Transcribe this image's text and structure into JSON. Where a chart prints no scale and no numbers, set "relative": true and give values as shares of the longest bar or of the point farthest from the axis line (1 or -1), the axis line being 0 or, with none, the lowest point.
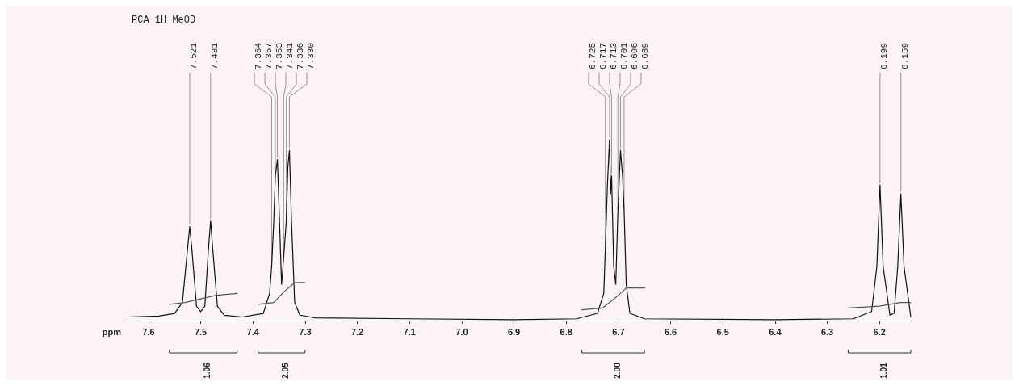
{
  "chart_data": {
    "type": "line",
    "title": "PCA 1H MeOD",
    "xlabel": "ppm",
    "relative": true,
    "marker": "none",
    "line_style": "solid",
    "grid": false,
    "xlim": [
      7.64,
      6.14
    ],
    "xticks": [
      7.6,
      7.5,
      7.4,
      7.3,
      7.2,
      7.1,
      {
        "value": 7,
        "label": "7.0"
      },
      6.9,
      6.8,
      6.7,
      6.6,
      6.5,
      6.4,
      6.3,
      6.2
    ],
    "series": [
      {
        "color": "#111111",
        "x": [
          7.64,
          7.58,
          7.55,
          7.535,
          7.525,
          7.521,
          7.517,
          7.508,
          7.5,
          7.492,
          7.485,
          7.481,
          7.477,
          7.468,
          7.455,
          7.42,
          7.38,
          7.368,
          7.364,
          7.36,
          7.357,
          7.353,
          7.349,
          7.345,
          7.341,
          7.336,
          7.333,
          7.33,
          7.326,
          7.32,
          7.31,
          7.28,
          7.1,
          6.9,
          6.78,
          6.74,
          6.728,
          6.725,
          6.721,
          6.717,
          6.715,
          6.713,
          6.709,
          6.705,
          6.701,
          6.696,
          6.692,
          6.689,
          6.685,
          6.678,
          6.65,
          6.4,
          6.25,
          6.215,
          6.205,
          6.199,
          6.193,
          6.18,
          6.172,
          6.165,
          6.159,
          6.153,
          6.14
        ],
        "values": [
          0.02,
          0.025,
          0.04,
          0.1,
          0.4,
          0.52,
          0.4,
          0.08,
          0.05,
          0.08,
          0.4,
          0.55,
          0.4,
          0.08,
          0.03,
          0.02,
          0.04,
          0.15,
          0.3,
          0.55,
          0.8,
          0.89,
          0.55,
          0.2,
          0.35,
          0.55,
          0.85,
          0.94,
          0.55,
          0.1,
          0.03,
          0.015,
          0.01,
          0.005,
          0.01,
          0.04,
          0.15,
          0.4,
          0.75,
          1.0,
          0.7,
          0.8,
          0.3,
          0.2,
          0.6,
          0.94,
          0.8,
          0.6,
          0.2,
          0.04,
          0.01,
          0.005,
          0.01,
          0.05,
          0.3,
          0.75,
          0.3,
          0.03,
          0.04,
          0.3,
          0.7,
          0.3,
          0.02
        ]
      },
      {
        "color": "#555555",
        "x": [
          7.56,
          7.53,
          7.5,
          7.47,
          7.43
        ],
        "values": [
          0.09,
          0.1,
          0.12,
          0.14,
          0.15
        ]
      },
      {
        "color": "#555555",
        "x": [
          7.39,
          7.36,
          7.34,
          7.32,
          7.3
        ],
        "values": [
          0.09,
          0.1,
          0.16,
          0.21,
          0.21
        ]
      },
      {
        "color": "#555555",
        "x": [
          6.77,
          6.73,
          6.7,
          6.685,
          6.65
        ],
        "values": [
          0.06,
          0.07,
          0.14,
          0.18,
          0.18
        ]
      },
      {
        "color": "#555555",
        "x": [
          6.26,
          6.2,
          6.16,
          6.14
        ],
        "values": [
          0.07,
          0.08,
          0.1,
          0.1
        ]
      }
    ],
    "annotations": [
      {
        "text": "7.521",
        "x": 7.521,
        "y": 0.52
      },
      {
        "text": "7.481",
        "x": 7.481,
        "y": 0.55
      },
      {
        "text": "7.364",
        "x": 7.364,
        "y": 0.3
      },
      {
        "text": "7.357",
        "x": 7.357,
        "y": 0.8
      },
      {
        "text": "7.353",
        "x": 7.353,
        "y": 0.89
      },
      {
        "text": "7.341",
        "x": 7.341,
        "y": 0.35
      },
      {
        "text": "7.336",
        "x": 7.336,
        "y": 0.55
      },
      {
        "text": "7.330",
        "x": 7.33,
        "y": 0.94
      },
      {
        "text": "6.725",
        "x": 6.725,
        "y": 0.4
      },
      {
        "text": "6.717",
        "x": 6.717,
        "y": 1.0
      },
      {
        "text": "6.713",
        "x": 6.713,
        "y": 0.8
      },
      {
        "text": "6.701",
        "x": 6.701,
        "y": 0.6
      },
      {
        "text": "6.696",
        "x": 6.696,
        "y": 0.94
      },
      {
        "text": "6.689",
        "x": 6.689,
        "y": 0.6
      },
      {
        "text": "6.199",
        "x": 6.199,
        "y": 0.75
      },
      {
        "text": "6.159",
        "x": 6.159,
        "y": 0.7
      },
      "1.06",
      "2.05",
      "2.00",
      "1.01"
    ]
  }
}
